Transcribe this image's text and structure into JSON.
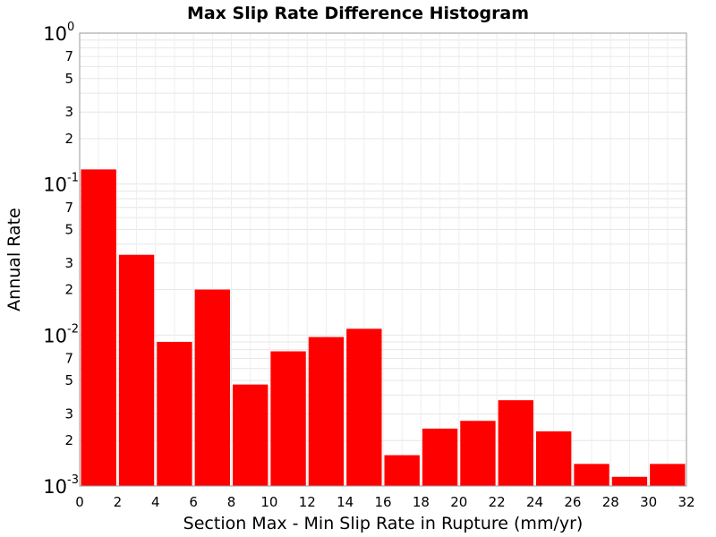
{
  "chart_data": {
    "type": "bar",
    "title": "Max Slip Rate Difference Histogram",
    "xlabel": "Section Max - Min Slip Rate in Rupture (mm/yr)",
    "ylabel": "Annual Rate",
    "xlim": [
      0,
      32
    ],
    "ylim": [
      0.001,
      1
    ],
    "yscale": "log",
    "grid": true,
    "bar_color": "#ff0000",
    "x_ticks": [
      "0",
      "2",
      "4",
      "6",
      "8",
      "10",
      "12",
      "14",
      "16",
      "18",
      "20",
      "22",
      "24",
      "26",
      "28",
      "30",
      "32"
    ],
    "y_major_ticks": [
      {
        "base": "10",
        "exp": "0",
        "value": 1
      },
      {
        "base": "10",
        "exp": "-1",
        "value": 0.1
      },
      {
        "base": "10",
        "exp": "-2",
        "value": 0.01
      },
      {
        "base": "10",
        "exp": "-3",
        "value": 0.001
      }
    ],
    "y_minor_tick_labels": [
      "2",
      "3",
      "5",
      "7"
    ],
    "bins": [
      {
        "x0": 0,
        "x1": 2,
        "value": 0.125
      },
      {
        "x0": 2,
        "x1": 4,
        "value": 0.034
      },
      {
        "x0": 4,
        "x1": 6,
        "value": 0.009
      },
      {
        "x0": 6,
        "x1": 8,
        "value": 0.02
      },
      {
        "x0": 8,
        "x1": 10,
        "value": 0.0047
      },
      {
        "x0": 10,
        "x1": 12,
        "value": 0.0078
      },
      {
        "x0": 12,
        "x1": 14,
        "value": 0.0097
      },
      {
        "x0": 14,
        "x1": 16,
        "value": 0.011
      },
      {
        "x0": 16,
        "x1": 18,
        "value": 0.0016
      },
      {
        "x0": 18,
        "x1": 20,
        "value": 0.0024
      },
      {
        "x0": 20,
        "x1": 22,
        "value": 0.0027
      },
      {
        "x0": 22,
        "x1": 24,
        "value": 0.0037
      },
      {
        "x0": 24,
        "x1": 26,
        "value": 0.0023
      },
      {
        "x0": 26,
        "x1": 28,
        "value": 0.0014
      },
      {
        "x0": 28,
        "x1": 30,
        "value": 0.00115
      },
      {
        "x0": 30,
        "x1": 32,
        "value": 0.0014
      }
    ]
  }
}
